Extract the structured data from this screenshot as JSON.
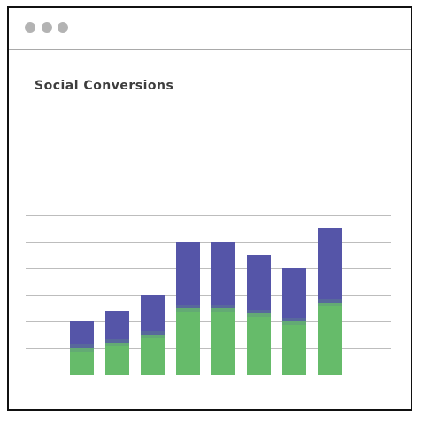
{
  "window": {
    "controls": [
      "window-dot",
      "window-dot",
      "window-dot"
    ]
  },
  "chart_data": {
    "type": "bar",
    "stacked": true,
    "title": "Social Conversions",
    "xlabel": "",
    "ylabel": "",
    "ylim": [
      0,
      6
    ],
    "grid": true,
    "categories": [
      "",
      "",
      "",
      "",
      "",
      "",
      "",
      ""
    ],
    "series": [
      {
        "color": "#66bb6a",
        "values": [
          1.0,
          1.2,
          1.5,
          2.5,
          2.5,
          2.3,
          2.0,
          2.7
        ]
      },
      {
        "color": "#5555a8",
        "values": [
          1.0,
          1.2,
          1.5,
          2.5,
          2.5,
          2.2,
          2.0,
          2.8
        ]
      }
    ]
  }
}
